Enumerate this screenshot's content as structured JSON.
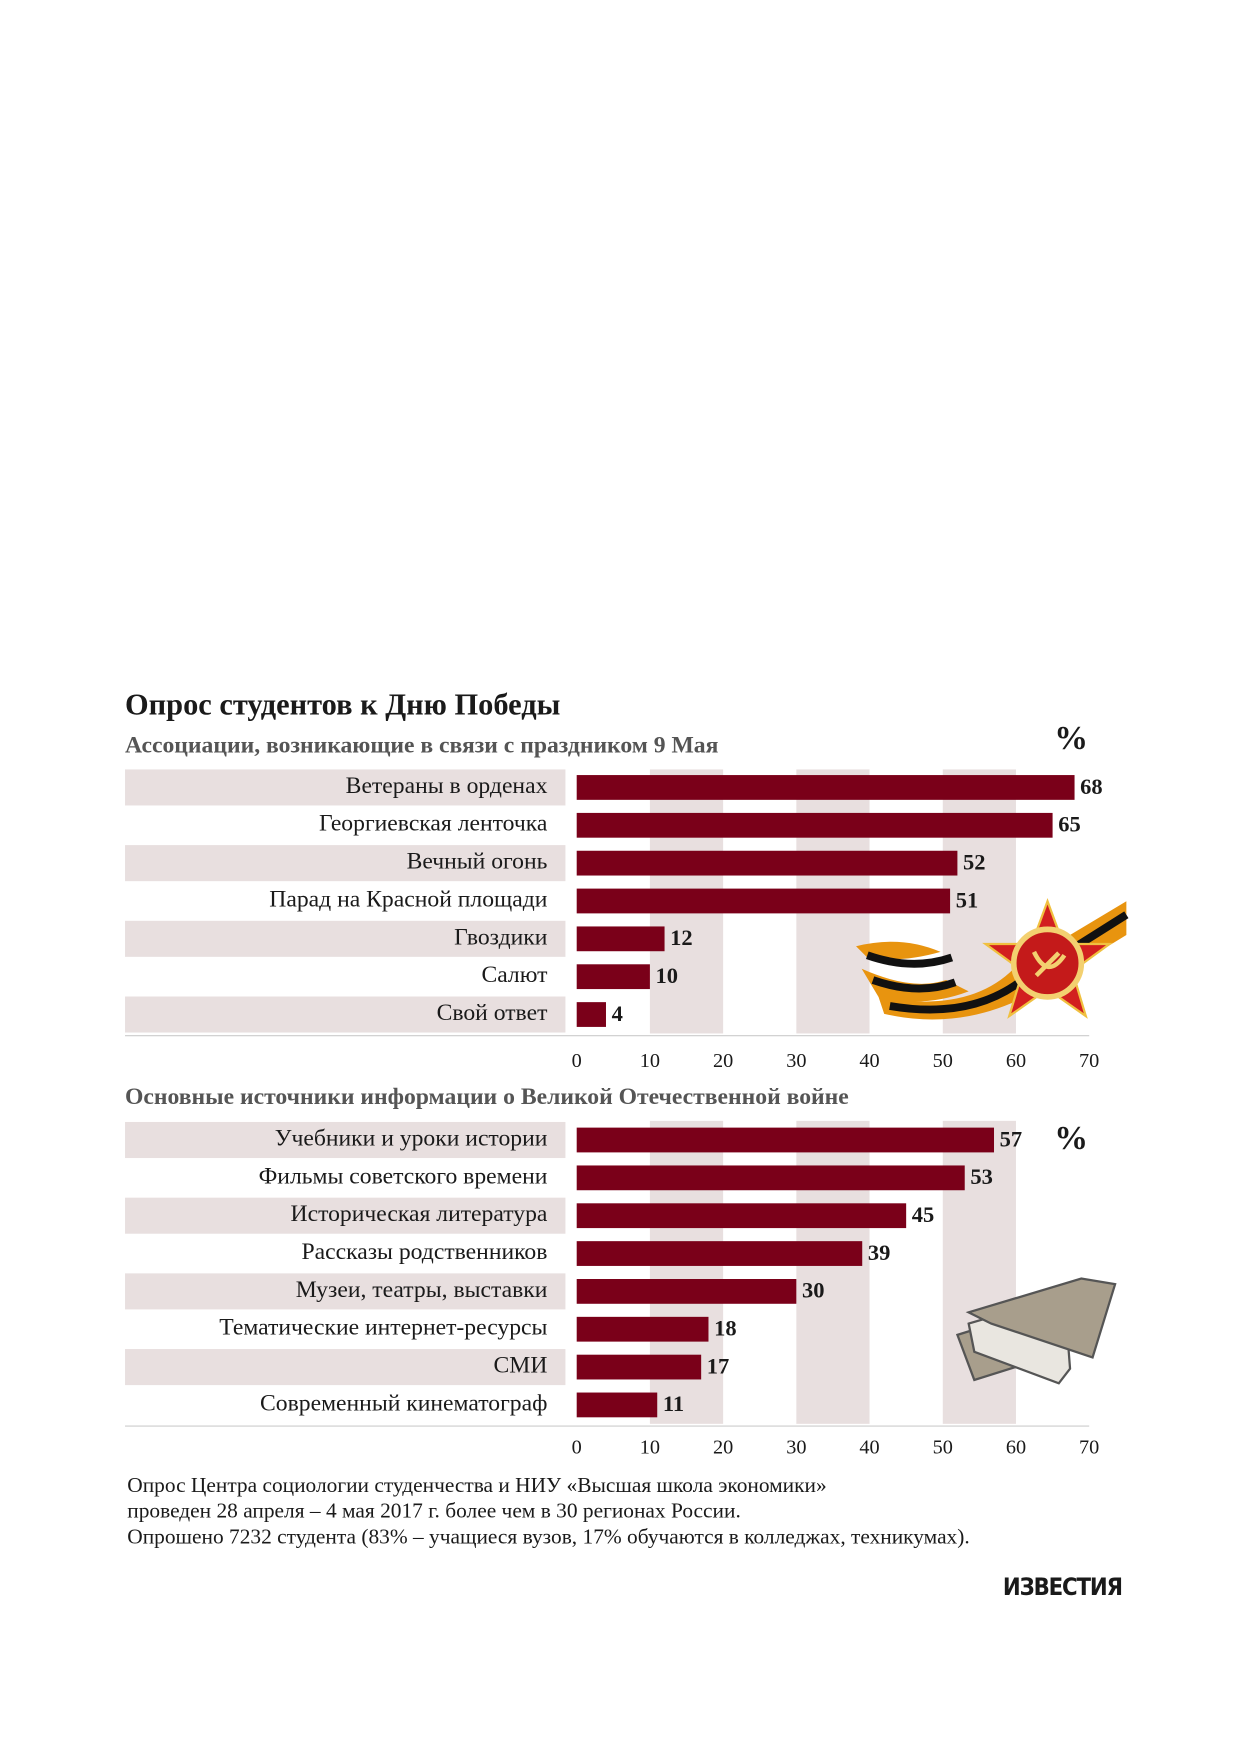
{
  "title": "Опрос студентов к Дню Победы",
  "chart_data": [
    {
      "type": "bar",
      "orientation": "horizontal",
      "title": "Ассоциации, возникающие в связи с праздником 9 Мая",
      "unit": "%",
      "categories": [
        "Ветераны в орденах",
        "Георгиевская ленточка",
        "Вечный огонь",
        "Парад на Красной площади",
        "Гвоздики",
        "Салют",
        "Свой ответ"
      ],
      "values": [
        68,
        65,
        52,
        51,
        12,
        10,
        4
      ],
      "color": "#7a0019",
      "xlim": [
        0,
        70
      ],
      "xticks": [
        0,
        10,
        20,
        30,
        40,
        50,
        60,
        70
      ]
    },
    {
      "type": "bar",
      "orientation": "horizontal",
      "title": "Основные источники информации о Великой Отечественной войне",
      "unit": "%",
      "categories": [
        "Учебники и уроки истории",
        "Фильмы советского времени",
        "Историческая литература",
        "Рассказы родственников",
        "Музеи, театры, выставки",
        "Тематические интернет-ресурсы",
        "СМИ",
        "Современный кинематограф"
      ],
      "values": [
        57,
        53,
        45,
        39,
        30,
        18,
        17,
        11
      ],
      "color": "#7a0019",
      "xlim": [
        0,
        70
      ],
      "xticks": [
        0,
        10,
        20,
        30,
        40,
        50,
        60,
        70
      ]
    }
  ],
  "footer": [
    "Опрос Центра социологии студенчества и НИУ «Высшая школа экономики»",
    "проведен 28 апреля – 4 мая 2017 г. более чем в 30 регионах России.",
    "Опрошено 7232 студента (83% – учащиеся вузов, 17% обучаются в колледжах, техникумах)."
  ],
  "logo": "ИЗВЕСТИЯ"
}
